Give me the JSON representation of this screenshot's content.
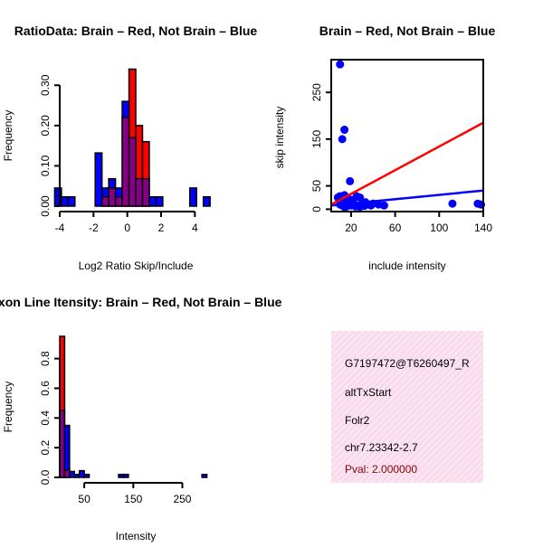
{
  "colors": {
    "red": "#ff0000",
    "blue": "#0000ff",
    "overlap": "#8b008b",
    "panel_fill": "#f9dcef",
    "pval": "#8b0000"
  },
  "chart_data": [
    {
      "id": "ratio",
      "type": "bar",
      "title": "RatioData: Brain – Red, Not Brain – Blue",
      "xlabel": "Log2 Ratio Skip/Include",
      "ylabel": "Frequency",
      "xlim": [
        -4,
        5
      ],
      "ylim": [
        0,
        0.35
      ],
      "xticks": [
        -4,
        -2,
        0,
        2,
        4
      ],
      "yticks": [
        0.0,
        0.1,
        0.2,
        0.3
      ],
      "ytick_labels": [
        "0.00",
        "0.10",
        "0.20",
        "0.30"
      ],
      "bin_width": 0.4,
      "series": [
        {
          "name": "Not Brain",
          "color": "blue",
          "bins": [
            [
              -4.1,
              0.045
            ],
            [
              -3.7,
              0.023
            ],
            [
              -3.3,
              0.023
            ],
            [
              -2.9,
              0
            ],
            [
              -2.5,
              0
            ],
            [
              -2.1,
              0
            ],
            [
              -1.7,
              0.132
            ],
            [
              -1.3,
              0.045
            ],
            [
              -0.9,
              0.068
            ],
            [
              -0.5,
              0.045
            ],
            [
              -0.1,
              0.26
            ],
            [
              0.3,
              0.17
            ],
            [
              0.7,
              0.068
            ],
            [
              1.1,
              0.068
            ],
            [
              1.5,
              0.023
            ],
            [
              1.9,
              0.023
            ],
            [
              2.3,
              0
            ],
            [
              2.7,
              0
            ],
            [
              3.1,
              0
            ],
            [
              3.5,
              0
            ],
            [
              3.9,
              0.045
            ],
            [
              4.3,
              0
            ],
            [
              4.7,
              0.023
            ]
          ]
        },
        {
          "name": "Brain",
          "color": "red",
          "bins": [
            [
              -1.3,
              0.023
            ],
            [
              -0.9,
              0.045
            ],
            [
              -0.5,
              0.023
            ],
            [
              -0.1,
              0.22
            ],
            [
              0.3,
              0.34
            ],
            [
              0.7,
              0.2
            ],
            [
              1.1,
              0.16
            ]
          ]
        }
      ]
    },
    {
      "id": "scatter",
      "type": "scatter",
      "title": "Brain – Red, Not Brain – Blue",
      "xlabel": "include intensity",
      "ylabel": "skip intensity",
      "xlim": [
        2,
        140
      ],
      "ylim": [
        -5,
        320
      ],
      "xticks": [
        20,
        60,
        100,
        140
      ],
      "yticks": [
        0,
        50,
        150,
        250
      ],
      "points": [
        [
          10,
          310
        ],
        [
          12,
          150
        ],
        [
          14,
          170
        ],
        [
          19,
          60
        ],
        [
          8,
          25
        ],
        [
          10,
          28
        ],
        [
          12,
          25
        ],
        [
          14,
          30
        ],
        [
          16,
          20
        ],
        [
          18,
          22
        ],
        [
          20,
          15
        ],
        [
          22,
          20
        ],
        [
          25,
          28
        ],
        [
          28,
          25
        ],
        [
          30,
          12
        ],
        [
          33,
          15
        ],
        [
          36,
          10
        ],
        [
          40,
          12
        ],
        [
          45,
          10
        ],
        [
          50,
          8
        ],
        [
          10,
          10
        ],
        [
          12,
          8
        ],
        [
          14,
          5
        ],
        [
          16,
          6
        ],
        [
          20,
          8
        ],
        [
          24,
          6
        ],
        [
          28,
          5
        ],
        [
          32,
          7
        ],
        [
          38,
          8
        ],
        [
          112,
          12
        ],
        [
          135,
          12
        ],
        [
          138,
          10
        ]
      ],
      "lines": [
        {
          "name": "Not Brain fit",
          "color": "blue",
          "from": [
            2,
            8
          ],
          "to": [
            140,
            40
          ]
        },
        {
          "name": "Brain fit",
          "color": "red",
          "from": [
            2,
            10
          ],
          "to": [
            140,
            185
          ]
        }
      ]
    },
    {
      "id": "intensity",
      "type": "bar",
      "title": "Exon Line Itensity: Brain – Red, Not Brain – Blue",
      "xlabel": "Intensity",
      "ylabel": "Frequency",
      "xlim": [
        0,
        310
      ],
      "ylim": [
        0,
        0.95
      ],
      "xticks": [
        50,
        150,
        250
      ],
      "yticks": [
        0.0,
        0.2,
        0.4,
        0.6,
        0.8
      ],
      "ytick_labels": [
        "0.0",
        "0.2",
        "0.4",
        "0.6",
        "0.8"
      ],
      "bin_width": 10,
      "series": [
        {
          "name": "Not Brain",
          "color": "blue",
          "bins": [
            [
              5,
              0.45
            ],
            [
              15,
              0.35
            ],
            [
              25,
              0.04
            ],
            [
              35,
              0.02
            ],
            [
              45,
              0.045
            ],
            [
              55,
              0.02
            ],
            [
              65,
              0
            ],
            [
              75,
              0
            ],
            [
              85,
              0
            ],
            [
              95,
              0
            ],
            [
              105,
              0
            ],
            [
              115,
              0
            ],
            [
              125,
              0.02
            ],
            [
              135,
              0.02
            ],
            [
              145,
              0
            ],
            [
              155,
              0
            ],
            [
              165,
              0
            ],
            [
              175,
              0
            ],
            [
              185,
              0
            ],
            [
              195,
              0
            ],
            [
              205,
              0
            ],
            [
              215,
              0
            ],
            [
              225,
              0
            ],
            [
              235,
              0
            ],
            [
              245,
              0
            ],
            [
              255,
              0
            ],
            [
              265,
              0
            ],
            [
              275,
              0
            ],
            [
              285,
              0
            ],
            [
              295,
              0.02
            ]
          ]
        },
        {
          "name": "Brain",
          "color": "red",
          "bins": [
            [
              5,
              0.95
            ],
            [
              15,
              0.05
            ]
          ]
        }
      ]
    }
  ],
  "info": {
    "id": "G7197472@T6260497_R",
    "event": "altTxStart",
    "gene": "Folr2",
    "location": "chr7.23342-2.7",
    "pval": "Pval: 2.000000"
  }
}
